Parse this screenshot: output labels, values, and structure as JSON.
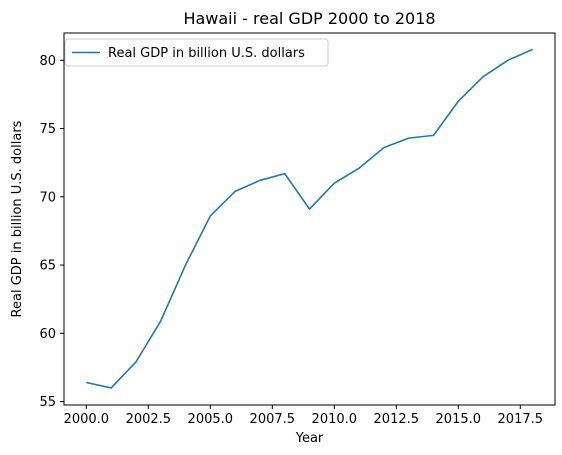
{
  "chart_data": {
    "type": "line",
    "title": "Hawaii - real GDP 2000 to 2018",
    "xlabel": "Year",
    "ylabel": "Real GDP in billion U.S. dollars",
    "x": [
      2000,
      2001,
      2002,
      2003,
      2004,
      2005,
      2006,
      2007,
      2008,
      2009,
      2010,
      2011,
      2012,
      2013,
      2014,
      2015,
      2016,
      2017,
      2018
    ],
    "series": [
      {
        "name": "Real GDP in billion U.S. dollars",
        "color": "#1f77b4",
        "values": [
          56.4,
          56.0,
          57.9,
          60.9,
          65.0,
          68.6,
          70.4,
          71.2,
          71.7,
          69.1,
          71.0,
          72.1,
          73.6,
          74.3,
          74.5,
          77.0,
          78.8,
          80.0,
          80.8
        ]
      }
    ],
    "xlim": [
      1999.1,
      2018.9
    ],
    "ylim": [
      54.75,
      82.0
    ],
    "xticks": [
      2000.0,
      2002.5,
      2005.0,
      2007.5,
      2010.0,
      2012.5,
      2015.0,
      2017.5
    ],
    "xtick_labels": [
      "2000.0",
      "2002.5",
      "2005.0",
      "2007.5",
      "2010.0",
      "2012.5",
      "2015.0",
      "2017.5"
    ],
    "yticks": [
      55,
      60,
      65,
      70,
      75,
      80
    ],
    "ytick_labels": [
      "55",
      "60",
      "65",
      "70",
      "75",
      "80"
    ],
    "grid": false,
    "legend_position": "top-left"
  }
}
